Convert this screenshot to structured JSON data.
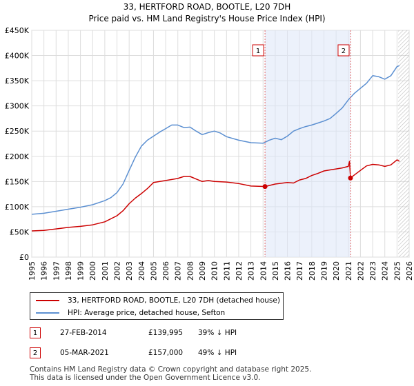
{
  "chart_data": {
    "type": "line",
    "title": "33, HERTFORD ROAD, BOOTLE, L20 7DH",
    "subtitle": "Price paid vs. HM Land Registry's House Price Index (HPI)",
    "xlabel": "",
    "ylabel": "",
    "xlim": [
      1995.0,
      2026.0
    ],
    "ylim": [
      0,
      450000
    ],
    "ytick_values": [
      0,
      50000,
      100000,
      150000,
      200000,
      250000,
      300000,
      350000,
      400000,
      450000
    ],
    "ytick_labels": [
      "£0",
      "£50K",
      "£100K",
      "£150K",
      "£200K",
      "£250K",
      "£300K",
      "£350K",
      "£400K",
      "£450K"
    ],
    "xtick_values": [
      1995,
      1996,
      1997,
      1998,
      1999,
      2000,
      2001,
      2002,
      2003,
      2004,
      2005,
      2006,
      2007,
      2008,
      2009,
      2010,
      2011,
      2012,
      2013,
      2014,
      2015,
      2016,
      2017,
      2018,
      2019,
      2020,
      2021,
      2022,
      2023,
      2024,
      2025,
      2026
    ],
    "xtick_labels": [
      "1995",
      "1996",
      "1997",
      "1998",
      "1999",
      "2000",
      "2001",
      "2002",
      "2003",
      "2004",
      "2005",
      "2006",
      "2007",
      "2008",
      "2009",
      "2010",
      "2011",
      "2012",
      "2013",
      "2014",
      "2015",
      "2016",
      "2017",
      "2018",
      "2019",
      "2020",
      "2021",
      "2022",
      "2023",
      "2024",
      "2025",
      "2026"
    ],
    "grid": true,
    "shaded_region": [
      2014.16,
      2021.18
    ],
    "hatched_region": [
      2025.1,
      2026.0
    ],
    "series": [
      {
        "name": "33, HERTFORD ROAD, BOOTLE, L20 7DH (detached house)",
        "color": "#cc0000",
        "x": [
          1995.0,
          1996.0,
          1997.0,
          1998.0,
          1999.0,
          2000.0,
          2001.0,
          2002.0,
          2002.5,
          2003.0,
          2003.5,
          2004.0,
          2004.5,
          2005.0,
          2006.0,
          2007.0,
          2007.5,
          2008.0,
          2008.5,
          2009.0,
          2009.5,
          2010.0,
          2011.0,
          2012.0,
          2013.0,
          2014.16,
          2015.0,
          2016.0,
          2016.5,
          2017.0,
          2017.5,
          2018.0,
          2018.5,
          2019.0,
          2019.5,
          2020.0,
          2020.5,
          2021.0,
          2021.1,
          2021.18,
          2021.5,
          2022.0,
          2022.5,
          2023.0,
          2023.5,
          2024.0,
          2024.5,
          2025.0,
          2025.2
        ],
        "y": [
          52000,
          53000,
          56000,
          59000,
          61000,
          64000,
          70000,
          82000,
          92000,
          106000,
          117000,
          126000,
          136000,
          148000,
          152000,
          156000,
          160000,
          160000,
          155000,
          150000,
          152000,
          150000,
          149000,
          146000,
          141000,
          139995,
          145000,
          148000,
          147000,
          153000,
          156000,
          162000,
          166000,
          171000,
          173000,
          175000,
          177000,
          180000,
          190000,
          157000,
          163000,
          172000,
          181000,
          184000,
          183000,
          180000,
          183000,
          193000,
          190000
        ]
      },
      {
        "name": "HPI: Average price, detached house, Sefton",
        "color": "#5b8fd1",
        "x": [
          1995.0,
          1996.0,
          1997.0,
          1998.0,
          1999.0,
          2000.0,
          2001.0,
          2001.5,
          2002.0,
          2002.5,
          2003.0,
          2003.5,
          2004.0,
          2004.5,
          2005.0,
          2005.5,
          2006.0,
          2006.5,
          2007.0,
          2007.5,
          2008.0,
          2008.5,
          2009.0,
          2009.5,
          2010.0,
          2010.5,
          2011.0,
          2012.0,
          2013.0,
          2014.0,
          2014.5,
          2015.0,
          2015.5,
          2016.0,
          2016.5,
          2017.0,
          2017.5,
          2018.0,
          2018.5,
          2019.0,
          2019.5,
          2020.0,
          2020.5,
          2021.0,
          2021.5,
          2022.0,
          2022.5,
          2023.0,
          2023.5,
          2024.0,
          2024.5,
          2025.0,
          2025.2
        ],
        "y": [
          85000,
          87000,
          91000,
          95000,
          99000,
          104000,
          112000,
          118000,
          128000,
          145000,
          172000,
          198000,
          220000,
          232000,
          240000,
          248000,
          255000,
          262000,
          262000,
          257000,
          258000,
          250000,
          243000,
          247000,
          250000,
          246000,
          239000,
          232000,
          227000,
          226000,
          232000,
          236000,
          233000,
          240000,
          250000,
          255000,
          259000,
          262000,
          266000,
          270000,
          275000,
          285000,
          296000,
          312000,
          325000,
          335000,
          345000,
          360000,
          358000,
          353000,
          360000,
          378000,
          380000
        ]
      }
    ],
    "annotations": [
      {
        "label": "1",
        "x": 2014.16,
        "y": 139995
      },
      {
        "label": "2",
        "x": 2021.18,
        "y": 157000
      }
    ]
  },
  "legend": {
    "items": [
      {
        "label": "33, HERTFORD ROAD, BOOTLE, L20 7DH (detached house)",
        "color": "#cc0000"
      },
      {
        "label": "HPI: Average price, detached house, Sefton",
        "color": "#5b8fd1"
      }
    ]
  },
  "transactions": [
    {
      "num": "1",
      "date": "27-FEB-2014",
      "price": "£139,995",
      "hpi": "39% ↓ HPI"
    },
    {
      "num": "2",
      "date": "05-MAR-2021",
      "price": "£157,000",
      "hpi": "49% ↓ HPI"
    }
  ],
  "footer": {
    "line1": "Contains HM Land Registry data © Crown copyright and database right 2025.",
    "line2": "This data is licensed under the Open Government Licence v3.0."
  }
}
